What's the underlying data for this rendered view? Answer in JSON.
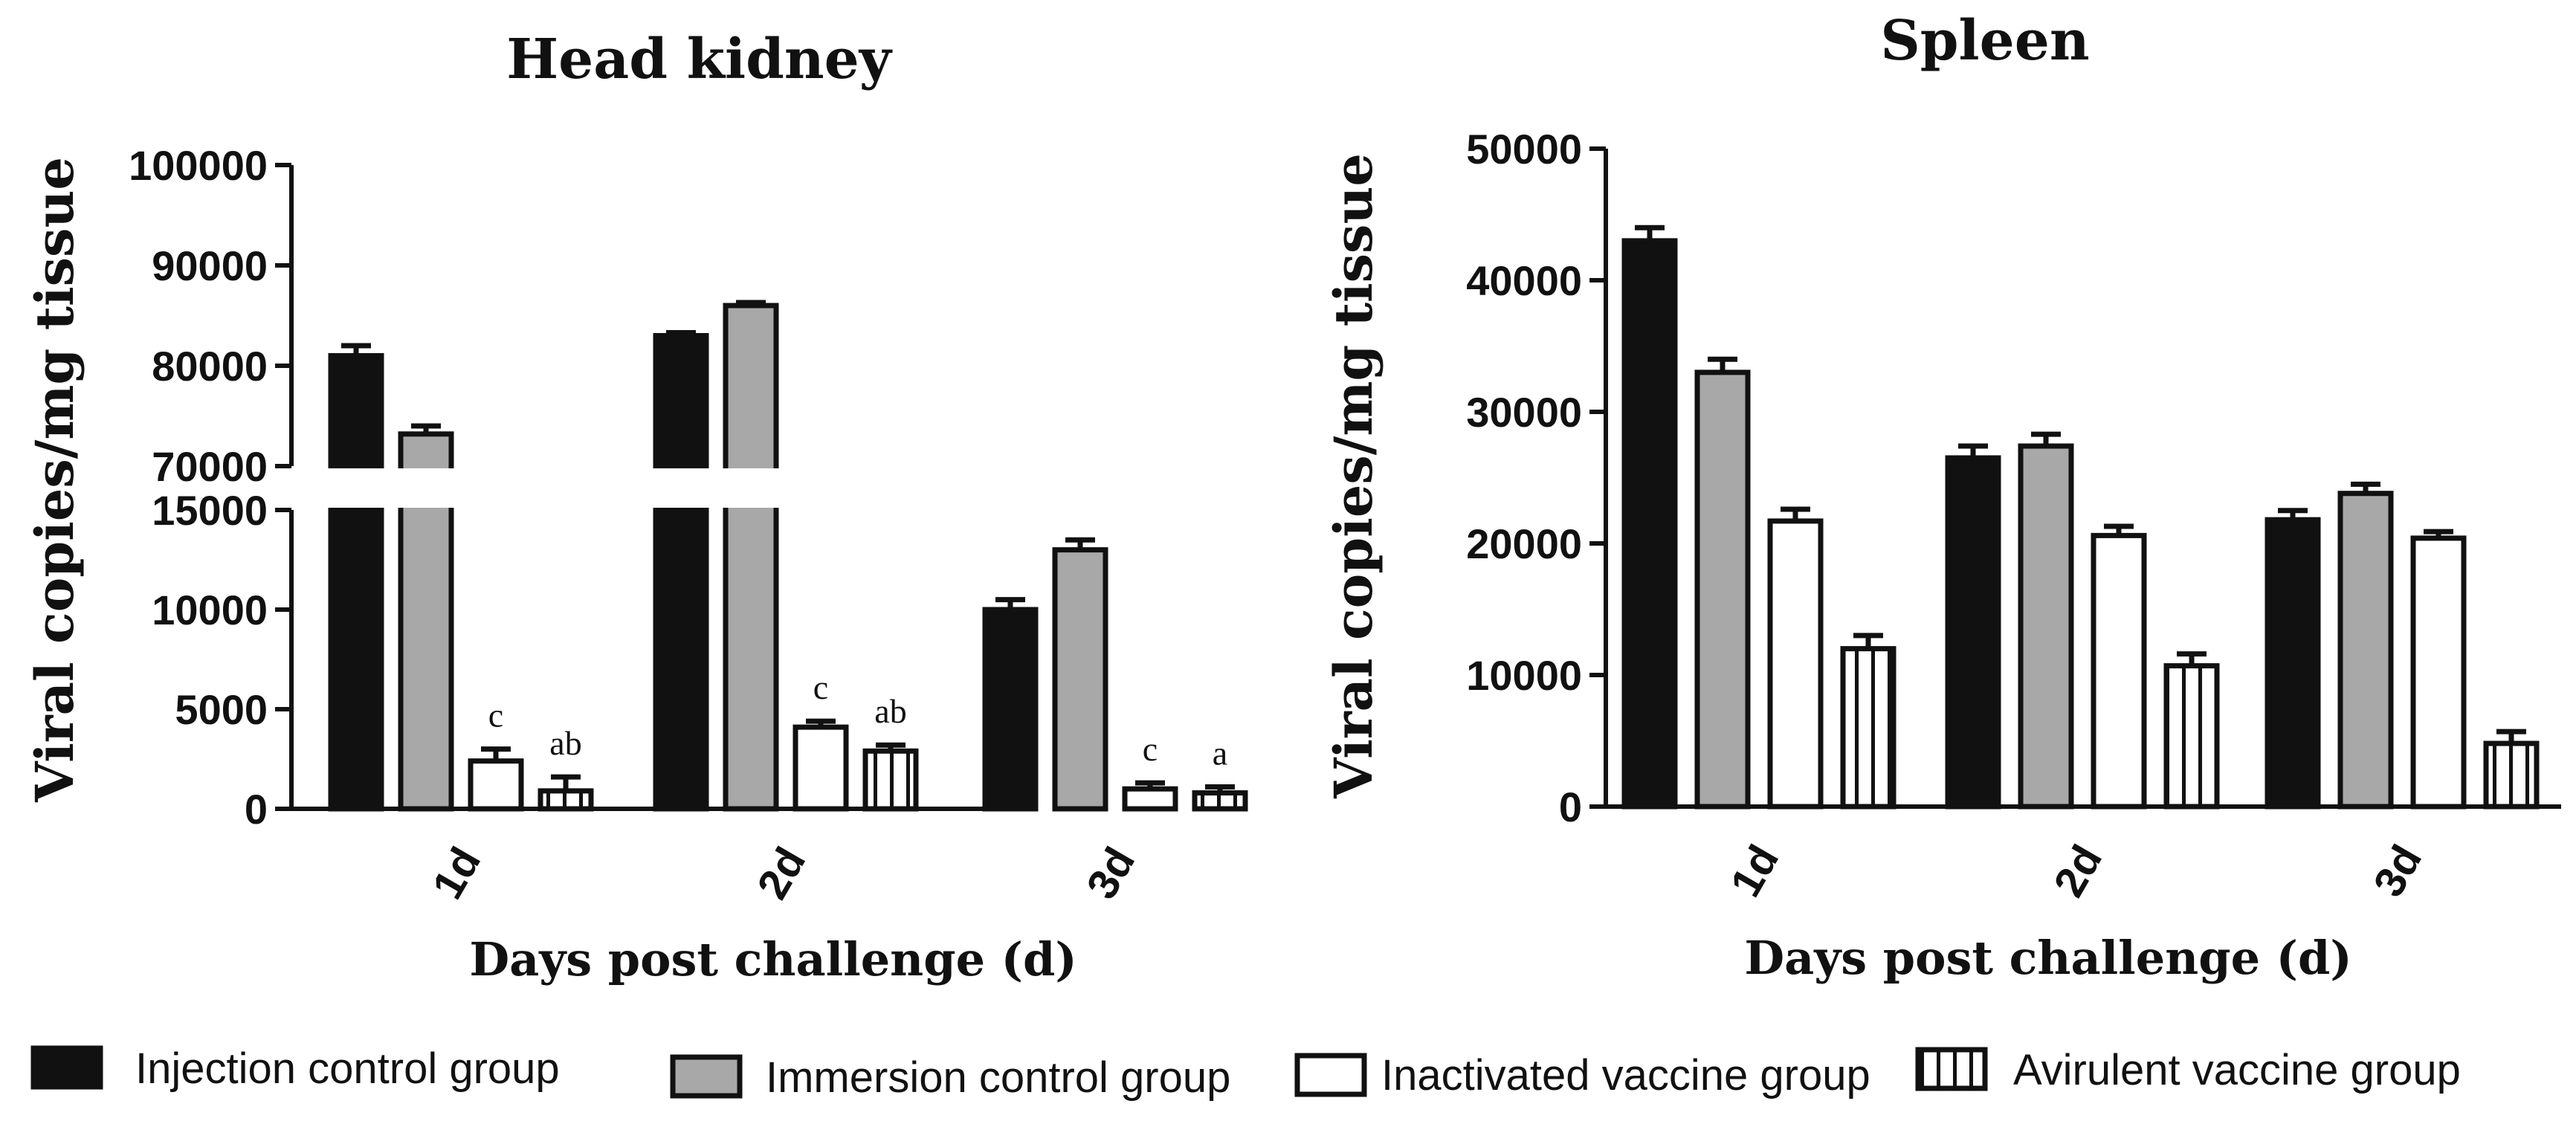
{
  "legend": {
    "items": [
      {
        "label": "Injection control group",
        "style": "black"
      },
      {
        "label": "Immersion control group",
        "style": "gray"
      },
      {
        "label": "Inactivated vaccine group",
        "style": "white"
      },
      {
        "label": "Avirulent vaccine group",
        "style": "striped"
      }
    ]
  },
  "colors": {
    "black": "#111111",
    "gray": "#a8a8a8",
    "white": "#ffffff",
    "stroke": "#111111"
  },
  "chart_data": [
    {
      "type": "bar",
      "title": "Head kidney",
      "ylabel": "Viral copies/mg tissue",
      "xlabel": "Days post challenge (d)",
      "axis_break": {
        "lower_range": [
          0,
          15000
        ],
        "upper_range": [
          70000,
          100000
        ]
      },
      "yticks_lower": [
        "0",
        "5000",
        "10000",
        "15000"
      ],
      "yticks_upper": [
        "70000",
        "80000",
        "90000",
        "100000"
      ],
      "categories": [
        "1d",
        "2d",
        "3d"
      ],
      "series": [
        {
          "name": "Injection control group",
          "values": [
            81000,
            83000,
            10000
          ],
          "errors": [
            1000,
            300,
            500
          ]
        },
        {
          "name": "Immersion control group",
          "values": [
            73200,
            86000,
            13000
          ],
          "errors": [
            800,
            300,
            500
          ]
        },
        {
          "name": "Inactivated vaccine group",
          "values": [
            2400,
            4100,
            1000
          ],
          "errors": [
            600,
            300,
            300
          ]
        },
        {
          "name": "Avirulent vaccine group",
          "values": [
            900,
            2900,
            800
          ],
          "errors": [
            700,
            300,
            300
          ]
        }
      ],
      "annotations": [
        {
          "category": "1d",
          "series": "Inactivated vaccine group",
          "text": "c"
        },
        {
          "category": "1d",
          "series": "Avirulent vaccine group",
          "text": "ab"
        },
        {
          "category": "2d",
          "series": "Inactivated vaccine group",
          "text": "c"
        },
        {
          "category": "2d",
          "series": "Avirulent vaccine group",
          "text": "ab"
        },
        {
          "category": "3d",
          "series": "Inactivated vaccine group",
          "text": "c"
        },
        {
          "category": "3d",
          "series": "Avirulent vaccine group",
          "text": "a"
        }
      ]
    },
    {
      "type": "bar",
      "title": "Spleen",
      "ylabel": "Viral copies/mg tissue",
      "xlabel": "Days post challenge (d)",
      "ylim": [
        0,
        50000
      ],
      "yticks": [
        "0",
        "10000",
        "20000",
        "30000",
        "40000",
        "50000"
      ],
      "categories": [
        "1d",
        "2d",
        "3d"
      ],
      "series": [
        {
          "name": "Injection control group",
          "values": [
            43000,
            26500,
            21800
          ],
          "errors": [
            1000,
            900,
            700
          ]
        },
        {
          "name": "Immersion control group",
          "values": [
            33000,
            27400,
            23800
          ],
          "errors": [
            1000,
            900,
            700
          ]
        },
        {
          "name": "Inactivated vaccine group",
          "values": [
            21700,
            20600,
            20400
          ],
          "errors": [
            900,
            700,
            500
          ]
        },
        {
          "name": "Avirulent vaccine group",
          "values": [
            12000,
            10700,
            4800
          ],
          "errors": [
            1000,
            900,
            900
          ]
        }
      ]
    }
  ]
}
